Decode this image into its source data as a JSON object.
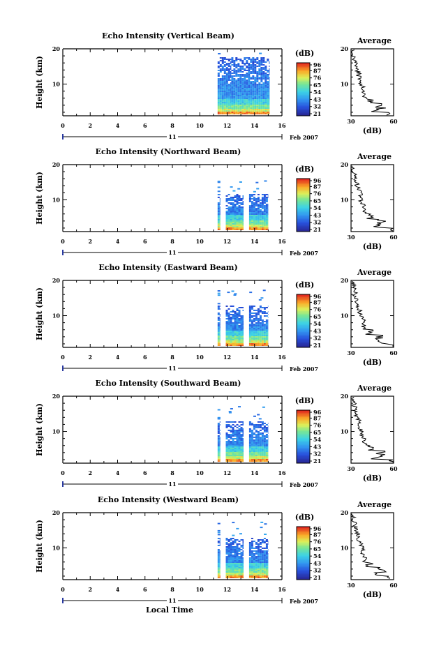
{
  "chart_data": [
    {
      "type": "heatmap",
      "title": "Echo Intensity (Vertical Beam)",
      "ylabel": "Height (km)",
      "yticks": [
        10,
        20
      ],
      "ylim": [
        1,
        20
      ],
      "xticks": [
        0,
        2,
        4,
        6,
        8,
        10,
        12,
        14,
        16
      ],
      "xlim": [
        0,
        16
      ],
      "date_marker": "11",
      "date_label": "Feb 2007",
      "colorbar": {
        "unit": "(dB)",
        "ticks": [
          96,
          87,
          76,
          65,
          54,
          43,
          32,
          21
        ],
        "range": [
          21,
          96
        ]
      },
      "data_blocks": [
        {
          "x": [
            11.3,
            12.3
          ],
          "y": [
            1,
            18
          ]
        },
        {
          "x": [
            12.3,
            12.6
          ],
          "y": [
            1,
            18
          ]
        },
        {
          "x": [
            12.6,
            15.1
          ],
          "y": [
            1,
            18
          ]
        }
      ],
      "average": {
        "title": "Average",
        "xlabel": "(dB)",
        "xticks": [
          30,
          60
        ],
        "xlim": [
          30,
          60
        ],
        "yticks": [
          10,
          20
        ],
        "ylim": [
          1,
          20
        ]
      }
    },
    {
      "type": "heatmap",
      "title": "Echo Intensity (Northward Beam)",
      "ylabel": "Height (km)",
      "yticks": [
        10,
        20
      ],
      "ylim": [
        1,
        20
      ],
      "xticks": [
        0,
        2,
        4,
        6,
        8,
        10,
        12,
        14,
        16
      ],
      "xlim": [
        0,
        16
      ],
      "date_marker": "11",
      "date_label": "Feb 2007",
      "colorbar": {
        "unit": "(dB)",
        "ticks": [
          96,
          87,
          76,
          65,
          54,
          43,
          32,
          21
        ],
        "range": [
          21,
          96
        ]
      },
      "data_blocks": [
        {
          "x": [
            11.3,
            11.5
          ],
          "y": [
            1,
            12
          ]
        },
        {
          "x": [
            11.9,
            13.2
          ],
          "y": [
            1,
            12
          ]
        },
        {
          "x": [
            13.6,
            15.0
          ],
          "y": [
            1,
            12
          ]
        }
      ],
      "average": {
        "title": "Average",
        "xlabel": "(dB)",
        "xticks": [
          30,
          60
        ],
        "xlim": [
          30,
          60
        ],
        "yticks": [
          10,
          20
        ],
        "ylim": [
          1,
          20
        ]
      }
    },
    {
      "type": "heatmap",
      "title": "Echo Intensity (Eastward Beam)",
      "ylabel": "Height (km)",
      "yticks": [
        10,
        20
      ],
      "ylim": [
        1,
        20
      ],
      "xticks": [
        0,
        2,
        4,
        6,
        8,
        10,
        12,
        14,
        16
      ],
      "xlim": [
        0,
        16
      ],
      "date_marker": "11",
      "date_label": "Feb 2007",
      "colorbar": {
        "unit": "(dB)",
        "ticks": [
          96,
          87,
          76,
          65,
          54,
          43,
          32,
          21
        ],
        "range": [
          21,
          96
        ]
      },
      "data_blocks": [
        {
          "x": [
            11.3,
            11.5
          ],
          "y": [
            1,
            13
          ]
        },
        {
          "x": [
            11.9,
            13.2
          ],
          "y": [
            1,
            13
          ]
        },
        {
          "x": [
            13.6,
            15.0
          ],
          "y": [
            1,
            13
          ]
        }
      ],
      "average": {
        "title": "Average",
        "xlabel": "(dB)",
        "xticks": [
          30,
          60
        ],
        "xlim": [
          30,
          60
        ],
        "yticks": [
          10,
          20
        ],
        "ylim": [
          1,
          20
        ]
      }
    },
    {
      "type": "heatmap",
      "title": "Echo Intensity (Southward Beam)",
      "ylabel": "Height (km)",
      "yticks": [
        10,
        20
      ],
      "ylim": [
        1,
        20
      ],
      "xticks": [
        0,
        2,
        4,
        6,
        8,
        10,
        12,
        14,
        16
      ],
      "xlim": [
        0,
        16
      ],
      "date_marker": "11",
      "date_label": "Feb 2007",
      "colorbar": {
        "unit": "(dB)",
        "ticks": [
          96,
          87,
          76,
          65,
          54,
          43,
          32,
          21
        ],
        "range": [
          21,
          96
        ]
      },
      "data_blocks": [
        {
          "x": [
            11.3,
            11.5
          ],
          "y": [
            1,
            13
          ]
        },
        {
          "x": [
            11.9,
            13.2
          ],
          "y": [
            1,
            13
          ]
        },
        {
          "x": [
            13.6,
            15.0
          ],
          "y": [
            1,
            13
          ]
        }
      ],
      "average": {
        "title": "Average",
        "xlabel": "(dB)",
        "xticks": [
          30,
          60
        ],
        "xlim": [
          30,
          60
        ],
        "yticks": [
          10,
          20
        ],
        "ylim": [
          1,
          20
        ]
      }
    },
    {
      "type": "heatmap",
      "title": "Echo Intensity (Westward Beam)",
      "ylabel": "Height (km)",
      "yticks": [
        10,
        20
      ],
      "ylim": [
        1,
        20
      ],
      "xticks": [
        0,
        2,
        4,
        6,
        8,
        10,
        12,
        14,
        16
      ],
      "xlim": [
        0,
        16
      ],
      "date_marker": "11",
      "date_label": "Feb 2007",
      "x_axis_title": "Local Time",
      "colorbar": {
        "unit": "(dB)",
        "ticks": [
          96,
          87,
          76,
          65,
          54,
          43,
          32,
          21
        ],
        "range": [
          21,
          96
        ]
      },
      "data_blocks": [
        {
          "x": [
            11.3,
            11.5
          ],
          "y": [
            1,
            13
          ]
        },
        {
          "x": [
            11.9,
            13.2
          ],
          "y": [
            1,
            13
          ]
        },
        {
          "x": [
            13.6,
            15.0
          ],
          "y": [
            1,
            13
          ]
        }
      ],
      "average": {
        "title": "Average",
        "xlabel": "(dB)",
        "xticks": [
          30,
          60
        ],
        "xlim": [
          30,
          60
        ],
        "yticks": [
          10,
          20
        ],
        "ylim": [
          1,
          20
        ]
      }
    }
  ]
}
